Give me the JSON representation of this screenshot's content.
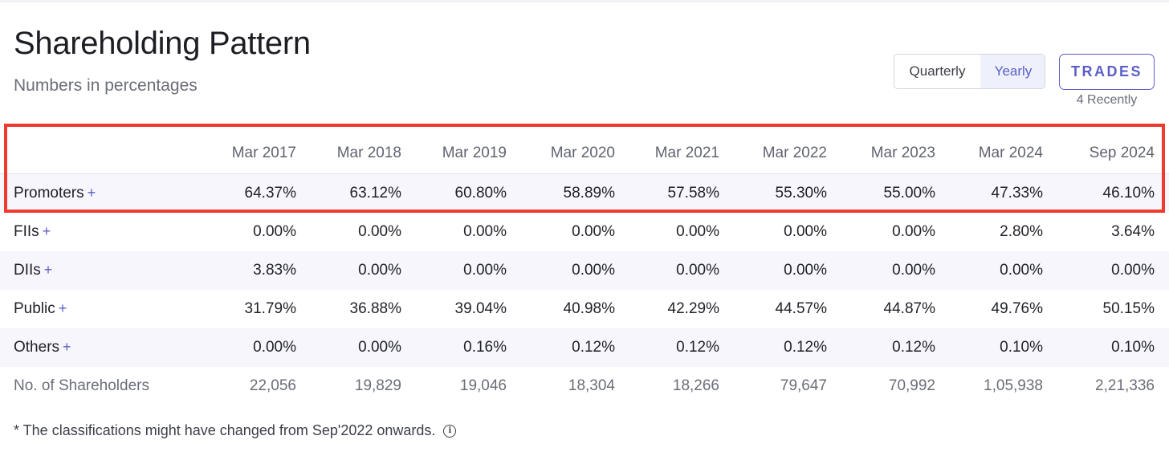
{
  "header": {
    "title": "Shareholding Pattern",
    "subtitle": "Numbers in percentages"
  },
  "toggle": {
    "options": [
      "Quarterly",
      "Yearly"
    ],
    "selected": "Yearly"
  },
  "trades": {
    "label": "TRADES",
    "recent": "4 Recently"
  },
  "table": {
    "columns": [
      "Mar 2017",
      "Mar 2018",
      "Mar 2019",
      "Mar 2020",
      "Mar 2021",
      "Mar 2022",
      "Mar 2023",
      "Mar 2024",
      "Sep 2024"
    ],
    "rows": [
      {
        "label": "Promoters",
        "expand": "+",
        "values": [
          "64.37%",
          "63.12%",
          "60.80%",
          "58.89%",
          "57.58%",
          "55.30%",
          "55.00%",
          "47.33%",
          "46.10%"
        ]
      },
      {
        "label": "FIIs",
        "expand": "+",
        "values": [
          "0.00%",
          "0.00%",
          "0.00%",
          "0.00%",
          "0.00%",
          "0.00%",
          "0.00%",
          "2.80%",
          "3.64%"
        ]
      },
      {
        "label": "DIIs",
        "expand": "+",
        "values": [
          "3.83%",
          "0.00%",
          "0.00%",
          "0.00%",
          "0.00%",
          "0.00%",
          "0.00%",
          "0.00%",
          "0.00%"
        ]
      },
      {
        "label": "Public",
        "expand": "+",
        "values": [
          "31.79%",
          "36.88%",
          "39.04%",
          "40.98%",
          "42.29%",
          "44.57%",
          "44.87%",
          "49.76%",
          "50.15%"
        ]
      },
      {
        "label": "Others",
        "expand": "+",
        "values": [
          "0.00%",
          "0.00%",
          "0.16%",
          "0.12%",
          "0.12%",
          "0.12%",
          "0.12%",
          "0.10%",
          "0.10%"
        ]
      },
      {
        "label": "No. of Shareholders",
        "values": [
          "22,056",
          "19,829",
          "19,046",
          "18,304",
          "18,266",
          "79,647",
          "70,992",
          "1,05,938",
          "2,21,336"
        ]
      }
    ]
  },
  "footnote": {
    "text": "* The classifications might have changed from Sep'2022 onwards.",
    "icon": "info-icon"
  },
  "colors": {
    "accent": "#5b5fc7",
    "highlight_border": "#ee3a2f",
    "striped_row": "#f6f6fc"
  }
}
